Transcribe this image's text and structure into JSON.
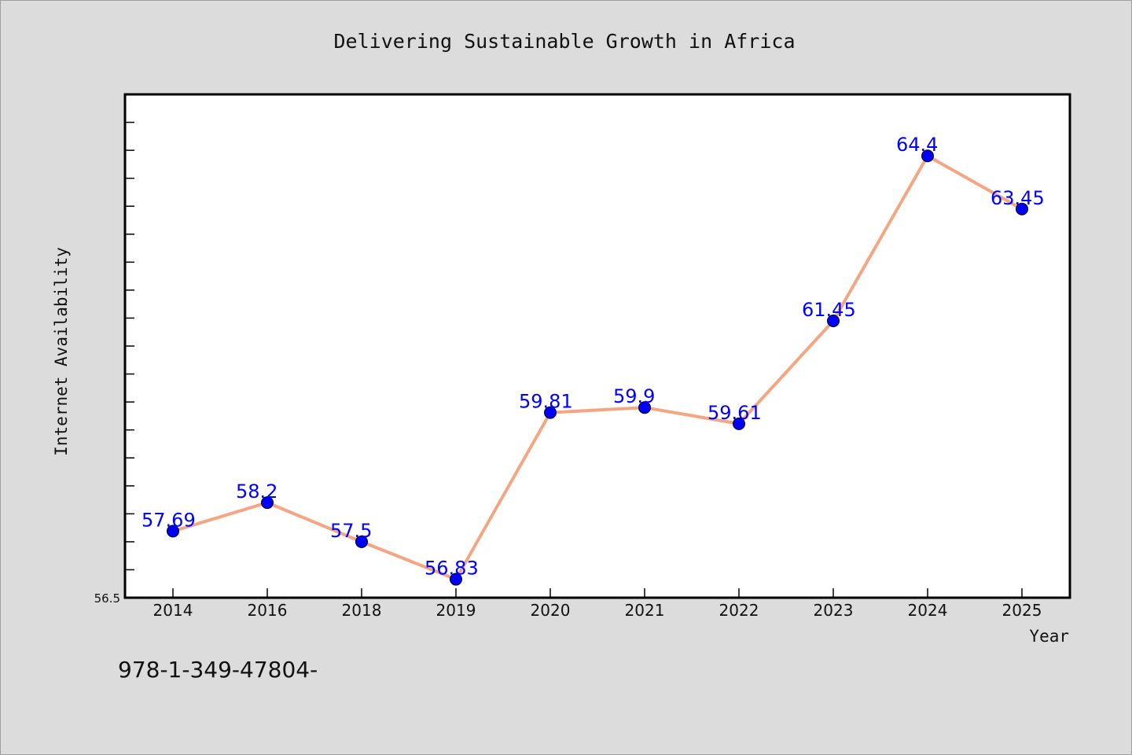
{
  "chart_data": {
    "type": "line",
    "title": "Delivering Sustainable Growth in Africa",
    "xlabel": "Year",
    "ylabel": "Internet Availability",
    "categories": [
      "2014",
      "2016",
      "2018",
      "2019",
      "2020",
      "2021",
      "2022",
      "2023",
      "2024",
      "2025"
    ],
    "values": [
      57.69,
      58.2,
      57.5,
      56.83,
      59.81,
      59.9,
      59.61,
      61.45,
      64.4,
      63.45
    ],
    "data_labels": [
      "57.69",
      "58.2",
      "57.5",
      "56.83",
      "59.81",
      "59.9",
      "59.61",
      "61.45",
      "64.4",
      "63.45"
    ],
    "ylim": [
      56.5,
      65.5
    ],
    "y_min_label": "56.5",
    "grid": false,
    "line_color": "#f4a582",
    "marker_color": "#0000ff",
    "label_color": "#0000ff"
  },
  "footer": {
    "code": "978-1-349-47804-"
  }
}
